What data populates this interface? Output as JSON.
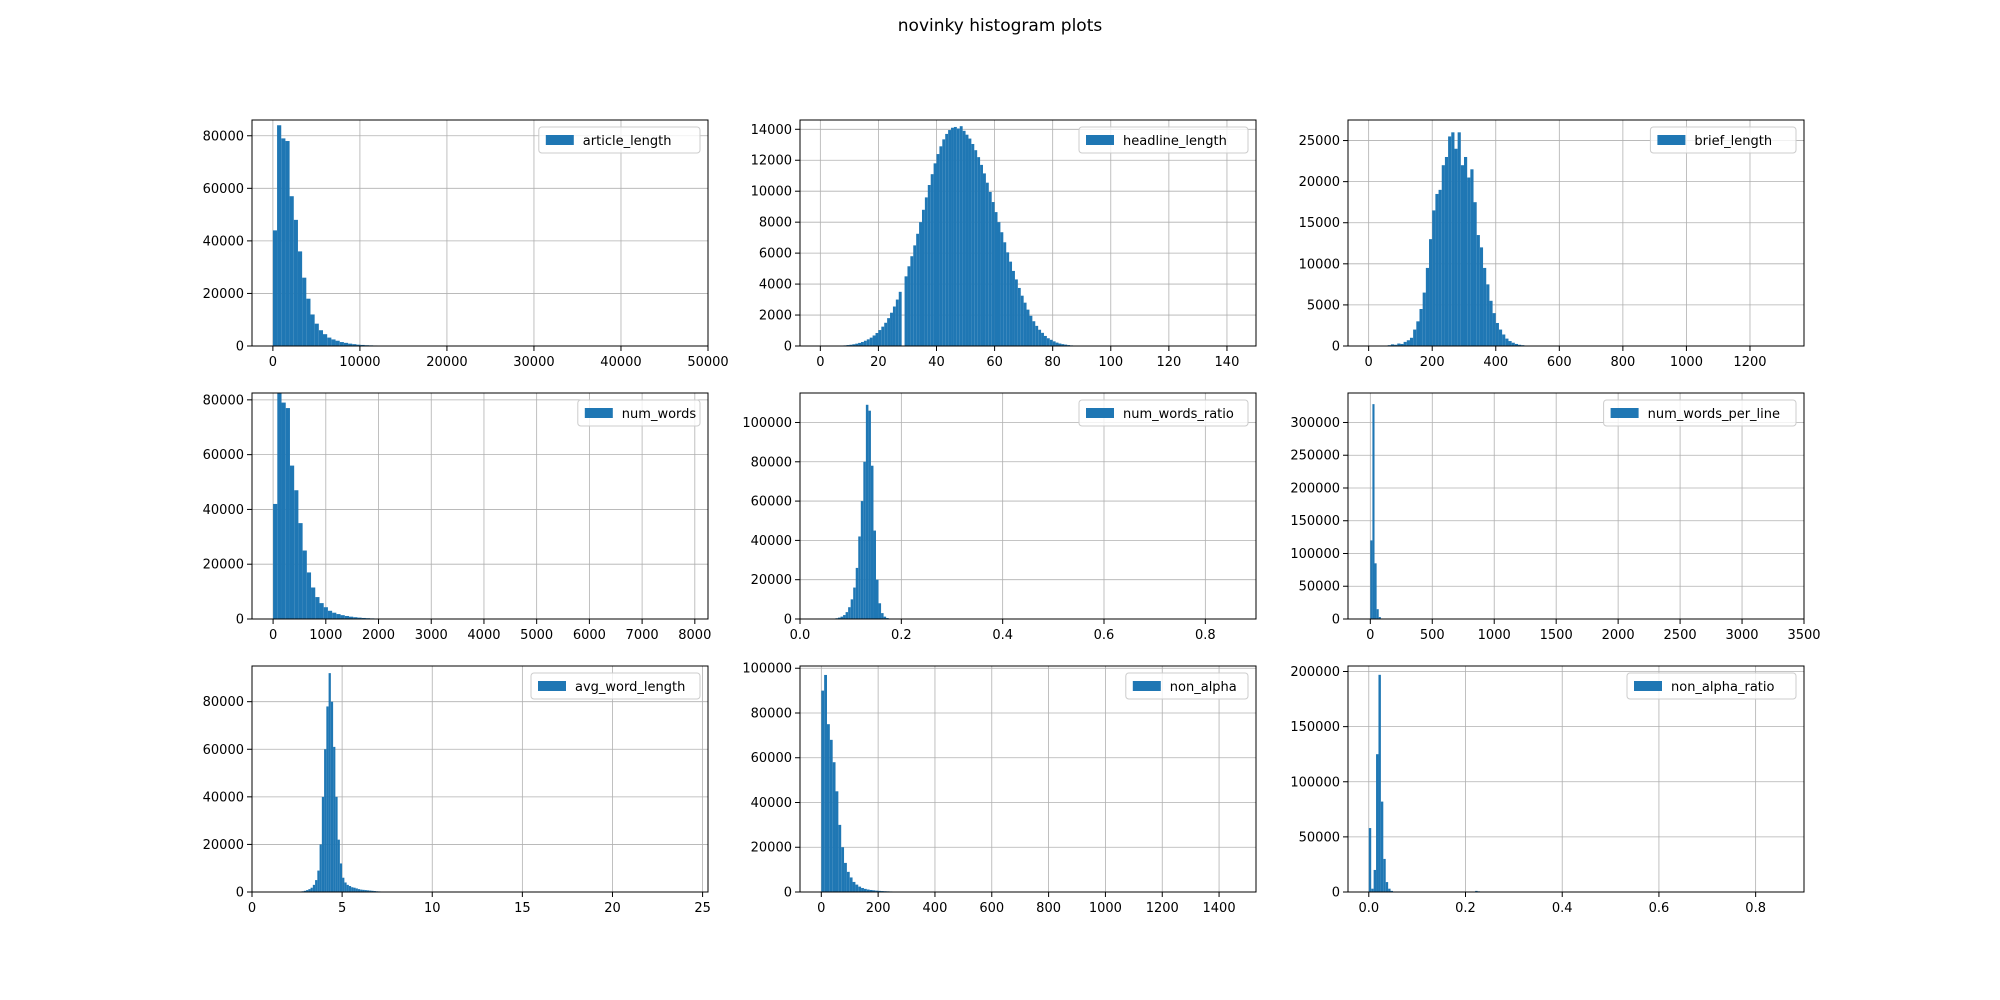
{
  "title": "novinky histogram plots",
  "colors": {
    "bar": "#1f77b4",
    "grid": "#b0b0b0",
    "axis": "#000000"
  },
  "chart_data": [
    {
      "type": "bar",
      "legend": "article_length",
      "legend_position": "top-right",
      "grid": true,
      "xlim": [
        -2400,
        50000
      ],
      "ylim": [
        0,
        86000
      ],
      "xticks": [
        0,
        10000,
        20000,
        30000,
        40000,
        50000
      ],
      "xtick_labels": [
        "0",
        "10000",
        "20000",
        "30000",
        "40000",
        "50000"
      ],
      "yticks": [
        0,
        20000,
        40000,
        60000,
        80000
      ],
      "ytick_labels": [
        "0",
        "20000",
        "40000",
        "60000",
        "80000"
      ],
      "bin_start": 0,
      "bin_width": 480,
      "values": [
        44000,
        84000,
        79000,
        78000,
        57000,
        48000,
        36000,
        26000,
        18000,
        12000,
        8500,
        6000,
        4500,
        3200,
        2500,
        2000,
        1500,
        1200,
        900,
        700,
        500,
        400,
        300,
        250,
        200,
        150,
        120,
        100,
        80
      ]
    },
    {
      "type": "bar",
      "legend": "headline_length",
      "legend_position": "top-right",
      "grid": true,
      "xlim": [
        -7,
        150
      ],
      "ylim": [
        0,
        14600
      ],
      "xticks": [
        0,
        20,
        40,
        60,
        80,
        100,
        120,
        140
      ],
      "xtick_labels": [
        "0",
        "20",
        "40",
        "60",
        "80",
        "100",
        "120",
        "140"
      ],
      "yticks": [
        0,
        2000,
        4000,
        6000,
        8000,
        10000,
        12000,
        14000
      ],
      "ytick_labels": [
        "0",
        "2000",
        "4000",
        "6000",
        "8000",
        "10000",
        "12000",
        "14000"
      ],
      "bin_start": 6,
      "bin_width": 1,
      "values": [
        20,
        30,
        40,
        60,
        80,
        110,
        150,
        200,
        260,
        340,
        430,
        540,
        680,
        840,
        1030,
        1250,
        1500,
        1800,
        2150,
        2550,
        3000,
        3500,
        0,
        4500,
        5150,
        5800,
        6500,
        7250,
        8000,
        8800,
        9600,
        10400,
        11100,
        11800,
        12400,
        12900,
        13350,
        13700,
        13950,
        14100,
        14150,
        14050,
        14200,
        13900,
        13650,
        13400,
        13050,
        12650,
        12200,
        11700,
        11150,
        10550,
        9950,
        9300,
        8650,
        8000,
        7350,
        6700,
        6050,
        5450,
        4850,
        4300,
        3750,
        3250,
        2800,
        2350,
        1950,
        1600,
        1300,
        1050,
        850,
        650,
        500,
        400,
        300,
        220,
        160,
        120,
        90,
        60,
        40,
        30,
        20,
        15,
        10
      ]
    },
    {
      "type": "bar",
      "legend": "brief_length",
      "legend_position": "top-right",
      "grid": true,
      "xlim": [
        -65,
        1370
      ],
      "ylim": [
        0,
        27500
      ],
      "xticks": [
        0,
        200,
        400,
        600,
        800,
        1000,
        1200
      ],
      "xtick_labels": [
        "0",
        "200",
        "400",
        "600",
        "800",
        "1000",
        "1200"
      ],
      "yticks": [
        0,
        5000,
        10000,
        15000,
        20000,
        25000
      ],
      "ytick_labels": [
        "0",
        "5000",
        "10000",
        "15000",
        "20000",
        "25000"
      ],
      "bin_start": 60,
      "bin_width": 10,
      "values": [
        100,
        200,
        150,
        300,
        250,
        500,
        700,
        1000,
        2000,
        3000,
        4500,
        6500,
        9500,
        13000,
        16500,
        18500,
        19000,
        22000,
        23000,
        25500,
        26000,
        24000,
        26000,
        22000,
        23000,
        20500,
        21500,
        17500,
        13500,
        12000,
        9500,
        7500,
        5500,
        4000,
        2800,
        2000,
        1400,
        900,
        600,
        400,
        250,
        150,
        100,
        60,
        40,
        20
      ]
    },
    {
      "type": "bar",
      "legend": "num_words",
      "legend_position": "top-right",
      "grid": true,
      "xlim": [
        -400,
        8250
      ],
      "ylim": [
        0,
        82500
      ],
      "xticks": [
        0,
        1000,
        2000,
        3000,
        4000,
        5000,
        6000,
        7000,
        8000
      ],
      "xtick_labels": [
        "0",
        "1000",
        "2000",
        "3000",
        "4000",
        "5000",
        "6000",
        "7000",
        "8000"
      ],
      "yticks": [
        0,
        20000,
        40000,
        60000,
        80000
      ],
      "ytick_labels": [
        "0",
        "20000",
        "40000",
        "60000",
        "80000"
      ],
      "bin_start": 0,
      "bin_width": 80,
      "values": [
        42000,
        83000,
        79000,
        77000,
        56000,
        47000,
        35000,
        25000,
        17000,
        11500,
        8000,
        5800,
        4300,
        3000,
        2300,
        1800,
        1400,
        1100,
        850,
        650,
        500,
        380,
        300,
        230,
        180,
        140,
        100,
        80
      ]
    },
    {
      "type": "bar",
      "legend": "num_words_ratio",
      "legend_position": "top-right",
      "grid": true,
      "xlim": [
        0,
        0.9
      ],
      "ylim": [
        0,
        115000
      ],
      "xticks": [
        0.0,
        0.2,
        0.4,
        0.6,
        0.8
      ],
      "xtick_labels": [
        "0.0",
        "0.2",
        "0.4",
        "0.6",
        "0.8"
      ],
      "yticks": [
        0,
        20000,
        40000,
        60000,
        80000,
        100000
      ],
      "ytick_labels": [
        "0",
        "20000",
        "40000",
        "60000",
        "80000",
        "100000"
      ],
      "bin_start": 0.06,
      "bin_width": 0.005,
      "values": [
        100,
        200,
        400,
        700,
        1200,
        2000,
        3500,
        6000,
        10000,
        16000,
        26000,
        42000,
        60000,
        80000,
        109000,
        106000,
        78000,
        45000,
        20000,
        8000,
        3000,
        1200,
        500,
        200,
        100,
        50
      ]
    },
    {
      "type": "bar",
      "legend": "num_words_per_line",
      "legend_position": "top-right",
      "grid": true,
      "xlim": [
        -180,
        3500
      ],
      "ylim": [
        0,
        345000
      ],
      "xticks": [
        0,
        500,
        1000,
        1500,
        2000,
        2500,
        3000,
        3500
      ],
      "xtick_labels": [
        "0",
        "500",
        "1000",
        "1500",
        "2000",
        "2500",
        "3000",
        "3500"
      ],
      "yticks": [
        0,
        50000,
        100000,
        150000,
        200000,
        250000,
        300000
      ],
      "ytick_labels": [
        "0",
        "50000",
        "100000",
        "150000",
        "200000",
        "250000",
        "300000"
      ],
      "bin_start": 0,
      "bin_width": 17,
      "values": [
        120000,
        328000,
        85000,
        15000,
        3000,
        800,
        300,
        100
      ]
    },
    {
      "type": "bar",
      "legend": "avg_word_length",
      "legend_position": "top-right",
      "grid": true,
      "xlim": [
        0,
        25.3
      ],
      "ylim": [
        0,
        95000
      ],
      "xticks": [
        0,
        5,
        10,
        15,
        20,
        25
      ],
      "xtick_labels": [
        "0",
        "5",
        "10",
        "15",
        "20",
        "25"
      ],
      "yticks": [
        0,
        20000,
        40000,
        60000,
        80000
      ],
      "ytick_labels": [
        "0",
        "20000",
        "40000",
        "60000",
        "80000"
      ],
      "bin_start": 2.5,
      "bin_width": 0.125,
      "values": [
        100,
        200,
        300,
        500,
        800,
        1200,
        1800,
        3000,
        5000,
        9000,
        20000,
        40000,
        60000,
        78000,
        92000,
        80000,
        61000,
        40000,
        22000,
        12000,
        6000,
        4000,
        3000,
        2500,
        2000,
        1800,
        1500,
        1200,
        1000,
        900,
        800,
        700,
        600,
        500,
        400,
        300,
        250,
        200,
        150,
        120,
        100,
        80,
        60,
        50,
        40
      ]
    },
    {
      "type": "bar",
      "legend": "non_alpha",
      "legend_position": "top-right",
      "grid": true,
      "xlim": [
        -75,
        1530
      ],
      "ylim": [
        0,
        101000
      ],
      "xticks": [
        0,
        200,
        400,
        600,
        800,
        1000,
        1200,
        1400
      ],
      "xtick_labels": [
        "0",
        "200",
        "400",
        "600",
        "800",
        "1000",
        "1200",
        "1400"
      ],
      "yticks": [
        0,
        20000,
        40000,
        60000,
        80000,
        100000
      ],
      "ytick_labels": [
        "0",
        "20000",
        "40000",
        "60000",
        "80000",
        "100000"
      ],
      "bin_start": 0,
      "bin_width": 10,
      "values": [
        90000,
        97000,
        75000,
        68000,
        58000,
        45000,
        30000,
        20000,
        13000,
        9000,
        6500,
        4500,
        3300,
        2400,
        1800,
        1400,
        1100,
        900,
        750,
        600,
        500,
        420,
        350,
        300,
        250,
        200,
        170,
        140,
        110,
        90,
        70
      ]
    },
    {
      "type": "bar",
      "legend": "non_alpha_ratio",
      "legend_position": "top-right",
      "grid": true,
      "xlim": [
        -0.043,
        0.9
      ],
      "ylim": [
        0,
        205000
      ],
      "xticks": [
        0.0,
        0.2,
        0.4,
        0.6,
        0.8
      ],
      "xtick_labels": [
        "0.0",
        "0.2",
        "0.4",
        "0.6",
        "0.8"
      ],
      "yticks": [
        0,
        50000,
        100000,
        150000,
        200000
      ],
      "ytick_labels": [
        "0",
        "50000",
        "100000",
        "150000",
        "200000"
      ],
      "bin_start": 0,
      "bin_width": 0.005,
      "values": [
        58000,
        3000,
        20000,
        125000,
        197000,
        82000,
        30000,
        9000,
        3000,
        1000,
        400,
        200,
        100,
        60,
        40,
        30,
        20,
        20,
        20,
        20,
        20,
        20,
        20,
        20,
        20,
        20,
        20,
        20,
        20,
        20,
        20,
        20,
        20,
        20,
        20,
        20,
        20,
        20,
        20,
        20,
        20,
        20,
        20,
        20,
        1000,
        600,
        200
      ]
    }
  ]
}
